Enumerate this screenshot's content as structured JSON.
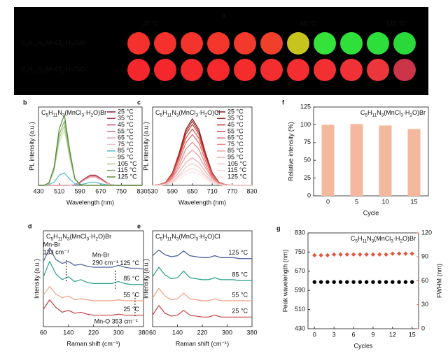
{
  "photo": {
    "panel": "a",
    "temperature_labels": [
      "25 °C",
      "85 °C",
      "125 °C"
    ],
    "rows": [
      {
        "label": "C5H11N3(MnCl3·H2O)Br",
        "colors": [
          "#f4312c",
          "#f4312c",
          "#f4332c",
          "#f4362c",
          "#f23a2c",
          "#f0402c",
          "#c8c41e",
          "#34e23a",
          "#30e03a",
          "#2ede3a",
          "#2ad83a"
        ]
      },
      {
        "label": "C5H11N3(MnCl3·H2O)Cl",
        "colors": [
          "#f4272c",
          "#f4282c",
          "#f4292c",
          "#f42a2c",
          "#f42c2c",
          "#f42d2e",
          "#f42e30",
          "#f23032",
          "#f03236",
          "#ec363c",
          "#cc3448"
        ]
      }
    ]
  },
  "chart_data": [
    {
      "panel": "b",
      "type": "line",
      "annotation": "C5H11N3(MnCl3·H2O)Br",
      "xlabel": "Wavelength (nm)",
      "ylabel": "PL intensity (a.u.)",
      "xlim": [
        430,
        830
      ],
      "xticks": [
        430,
        510,
        590,
        670,
        750,
        830
      ],
      "ylim": [
        0,
        1
      ],
      "legend": "right",
      "x": [
        430,
        450,
        470,
        490,
        510,
        530,
        550,
        570,
        590,
        610,
        630,
        650,
        670,
        690,
        710,
        730,
        750,
        770,
        790,
        810,
        830
      ],
      "series": [
        {
          "name": "25 °C",
          "color": "#8b1a2a",
          "values": [
            0,
            0,
            0,
            0,
            0,
            0,
            0,
            0.01,
            0.04,
            0.09,
            0.13,
            0.13,
            0.09,
            0.04,
            0.01,
            0,
            0,
            0,
            0,
            0,
            0
          ]
        },
        {
          "name": "35 °C",
          "color": "#b03040",
          "values": [
            0,
            0,
            0,
            0,
            0,
            0,
            0,
            0.01,
            0.04,
            0.09,
            0.13,
            0.13,
            0.09,
            0.04,
            0.01,
            0,
            0,
            0,
            0,
            0,
            0
          ]
        },
        {
          "name": "45 °C",
          "color": "#c85060",
          "values": [
            0,
            0,
            0,
            0,
            0,
            0,
            0,
            0.01,
            0.03,
            0.08,
            0.12,
            0.12,
            0.08,
            0.03,
            0.01,
            0,
            0,
            0,
            0,
            0,
            0
          ]
        },
        {
          "name": "55 °C",
          "color": "#d87080",
          "values": [
            0,
            0,
            0,
            0,
            0,
            0,
            0,
            0.01,
            0.03,
            0.08,
            0.12,
            0.12,
            0.08,
            0.03,
            0.01,
            0,
            0,
            0,
            0,
            0,
            0
          ]
        },
        {
          "name": "65 °C",
          "color": "#e49aa5",
          "values": [
            0,
            0,
            0,
            0,
            0,
            0,
            0,
            0.01,
            0.03,
            0.07,
            0.11,
            0.11,
            0.07,
            0.03,
            0.01,
            0,
            0,
            0,
            0,
            0,
            0
          ]
        },
        {
          "name": "75 °C",
          "color": "#f0c0c8",
          "values": [
            0,
            0,
            0,
            0,
            0,
            0,
            0,
            0.01,
            0.03,
            0.07,
            0.1,
            0.1,
            0.07,
            0.03,
            0.01,
            0,
            0,
            0,
            0,
            0,
            0
          ]
        },
        {
          "name": "85 °C",
          "color": "#4fbcd6",
          "values": [
            0,
            0,
            0.01,
            0.04,
            0.13,
            0.16,
            0.08,
            0.02,
            0.01,
            0.02,
            0.04,
            0.04,
            0.02,
            0.01,
            0,
            0,
            0,
            0,
            0,
            0,
            0
          ]
        },
        {
          "name": "95 °C",
          "color": "#cfe0b8",
          "values": [
            0,
            0,
            0.02,
            0.18,
            0.55,
            0.7,
            0.35,
            0.07,
            0.01,
            0,
            0,
            0,
            0,
            0,
            0,
            0,
            0,
            0,
            0,
            0,
            0
          ]
        },
        {
          "name": "105 °C",
          "color": "#aecb94",
          "values": [
            0,
            0,
            0.02,
            0.2,
            0.6,
            0.76,
            0.38,
            0.08,
            0.01,
            0,
            0,
            0,
            0,
            0,
            0,
            0,
            0,
            0,
            0,
            0,
            0
          ]
        },
        {
          "name": "115 °C",
          "color": "#86ad6a",
          "values": [
            0,
            0,
            0.03,
            0.21,
            0.65,
            0.82,
            0.42,
            0.09,
            0.01,
            0,
            0,
            0,
            0,
            0,
            0,
            0,
            0,
            0,
            0,
            0,
            0
          ]
        },
        {
          "name": "125 °C",
          "color": "#5a8a3a",
          "values": [
            0,
            0,
            0.03,
            0.23,
            0.72,
            0.9,
            0.46,
            0.09,
            0.01,
            0,
            0,
            0,
            0,
            0,
            0,
            0,
            0,
            0,
            0,
            0,
            0
          ]
        }
      ]
    },
    {
      "panel": "c",
      "type": "line",
      "annotation": "C5H11N3(MnCl3·H2O)Cl",
      "xlabel": "Wavelength (nm)",
      "ylabel": "PL intensity (a.u.)",
      "xlim": [
        530,
        830
      ],
      "xticks": [
        530,
        590,
        650,
        710,
        770,
        830
      ],
      "ylim": [
        0,
        1
      ],
      "legend": "right",
      "x": [
        530,
        550,
        570,
        590,
        610,
        630,
        650,
        670,
        690,
        710,
        730,
        750,
        770,
        790,
        810,
        830
      ],
      "series": [
        {
          "name": "25 °C",
          "color": "#8b1a1a",
          "values": [
            0,
            0.01,
            0.04,
            0.16,
            0.41,
            0.71,
            0.85,
            0.71,
            0.41,
            0.16,
            0.04,
            0.01,
            0,
            0,
            0,
            0
          ]
        },
        {
          "name": "35 °C",
          "color": "#a52a2a",
          "values": [
            0,
            0.01,
            0.04,
            0.16,
            0.39,
            0.68,
            0.82,
            0.68,
            0.39,
            0.16,
            0.04,
            0.01,
            0,
            0,
            0,
            0
          ]
        },
        {
          "name": "45 °C",
          "color": "#c0392b",
          "values": [
            0,
            0.01,
            0.04,
            0.15,
            0.37,
            0.65,
            0.78,
            0.65,
            0.37,
            0.15,
            0.04,
            0.01,
            0,
            0,
            0,
            0
          ]
        },
        {
          "name": "55 °C",
          "color": "#d9534f",
          "values": [
            0,
            0.01,
            0.04,
            0.14,
            0.35,
            0.6,
            0.72,
            0.6,
            0.35,
            0.14,
            0.04,
            0.01,
            0,
            0,
            0,
            0
          ]
        },
        {
          "name": "65 °C",
          "color": "#e06666",
          "values": [
            0,
            0.01,
            0.03,
            0.12,
            0.31,
            0.54,
            0.65,
            0.54,
            0.31,
            0.12,
            0.03,
            0.01,
            0,
            0,
            0,
            0
          ]
        },
        {
          "name": "75 °C",
          "color": "#e88080",
          "values": [
            0,
            0.01,
            0.03,
            0.1,
            0.26,
            0.46,
            0.55,
            0.46,
            0.26,
            0.1,
            0.03,
            0.01,
            0,
            0,
            0,
            0
          ]
        },
        {
          "name": "85 °C",
          "color": "#ec9a9a",
          "values": [
            0,
            0,
            0.02,
            0.09,
            0.22,
            0.37,
            0.45,
            0.37,
            0.22,
            0.09,
            0.02,
            0,
            0,
            0,
            0,
            0
          ]
        },
        {
          "name": "95 °C",
          "color": "#f0b0b0",
          "values": [
            0,
            0,
            0.02,
            0.07,
            0.17,
            0.29,
            0.35,
            0.29,
            0.17,
            0.07,
            0.02,
            0,
            0,
            0,
            0,
            0
          ]
        },
        {
          "name": "105 °C",
          "color": "#f4c4c4",
          "values": [
            0,
            0,
            0.01,
            0.05,
            0.13,
            0.23,
            0.28,
            0.23,
            0.13,
            0.05,
            0.01,
            0,
            0,
            0,
            0,
            0
          ]
        },
        {
          "name": "115 °C",
          "color": "#f7d4d4",
          "values": [
            0,
            0,
            0.01,
            0.04,
            0.11,
            0.18,
            0.22,
            0.18,
            0.11,
            0.04,
            0.01,
            0,
            0,
            0,
            0,
            0
          ]
        },
        {
          "name": "125 °C",
          "color": "#fae2e2",
          "values": [
            0,
            0,
            0.01,
            0.03,
            0.08,
            0.14,
            0.17,
            0.14,
            0.08,
            0.03,
            0.01,
            0,
            0,
            0,
            0,
            0
          ]
        }
      ]
    },
    {
      "panel": "f",
      "type": "bar",
      "annotation": "C5H11N3(MnCl3·H2O)Br",
      "xlabel": "Cycle",
      "ylabel": "Relative intensity (%)",
      "categories": [
        "0",
        "5",
        "10",
        "15"
      ],
      "values": [
        100,
        101,
        99,
        94
      ],
      "color": "#f4b89e",
      "ylim": [
        0,
        125
      ],
      "yticks": [
        0,
        25,
        50,
        75,
        100,
        125
      ]
    },
    {
      "panel": "d",
      "type": "line",
      "annotation": "C5H11N3(MnCl3·H2O)Br",
      "xlabel": "Raman shift (cm⁻¹)",
      "ylabel": "Intensity (a.u.)",
      "xlim": [
        60,
        380
      ],
      "xticks": [
        60,
        140,
        220,
        300,
        380
      ],
      "ylim": [
        0,
        1
      ],
      "legend": "inline",
      "x": [
        60,
        80,
        100,
        120,
        140,
        160,
        180,
        200,
        220,
        240,
        260,
        280,
        300,
        320,
        340,
        360,
        380
      ],
      "series": [
        {
          "name": "125 °C",
          "color": "#4a5a9a",
          "values": [
            0.68,
            0.82,
            0.7,
            0.66,
            0.68,
            0.64,
            0.65,
            0.63,
            0.62,
            0.62,
            0.62,
            0.62,
            0.64,
            0.62,
            0.61,
            0.61,
            0.6
          ]
        },
        {
          "name": "85 °C",
          "color": "#2aa08a",
          "values": [
            0.52,
            0.68,
            0.55,
            0.49,
            0.52,
            0.47,
            0.49,
            0.46,
            0.45,
            0.45,
            0.45,
            0.45,
            0.47,
            0.45,
            0.44,
            0.44,
            0.44
          ]
        },
        {
          "name": "55 °C",
          "color": "#f0a080",
          "values": [
            0.33,
            0.42,
            0.34,
            0.3,
            0.32,
            0.28,
            0.29,
            0.28,
            0.27,
            0.27,
            0.27,
            0.27,
            0.28,
            0.27,
            0.27,
            0.27,
            0.27
          ]
        },
        {
          "name": "25 °C",
          "color": "#c04040",
          "values": [
            0.18,
            0.28,
            0.2,
            0.15,
            0.17,
            0.14,
            0.15,
            0.13,
            0.12,
            0.12,
            0.12,
            0.12,
            0.13,
            0.12,
            0.12,
            0.12,
            0.12
          ]
        }
      ],
      "markers": [
        {
          "x": 133,
          "label": [
            "Mn-Br",
            "133 cm⁻¹"
          ]
        },
        {
          "x": 290,
          "label": [
            "Mn-Br",
            "290 cm⁻¹"
          ]
        },
        {
          "x": 353,
          "label": [
            "Mn-O 353 cm⁻¹"
          ]
        }
      ]
    },
    {
      "panel": "e",
      "type": "line",
      "annotation": "C5H11N3(MnCl3·H2O)Cl",
      "xlabel": "Raman shift (cm⁻¹)",
      "ylabel": "Intensity (a.u.)",
      "xlim": [
        60,
        380
      ],
      "xticks": [
        60,
        140,
        220,
        300,
        380
      ],
      "ylim": [
        0,
        1
      ],
      "legend": "inline",
      "x": [
        60,
        80,
        100,
        120,
        140,
        160,
        180,
        200,
        220,
        240,
        260,
        280,
        300,
        320,
        340,
        360,
        380
      ],
      "series": [
        {
          "name": "125 °C",
          "color": "#4a5a9a",
          "values": [
            0.74,
            0.8,
            0.75,
            0.73,
            0.74,
            0.79,
            0.74,
            0.73,
            0.72,
            0.72,
            0.74,
            0.72,
            0.72,
            0.72,
            0.71,
            0.71,
            0.71
          ]
        },
        {
          "name": "85 °C",
          "color": "#2aa08a",
          "values": [
            0.52,
            0.62,
            0.54,
            0.5,
            0.51,
            0.58,
            0.51,
            0.5,
            0.49,
            0.49,
            0.51,
            0.49,
            0.49,
            0.49,
            0.48,
            0.48,
            0.48
          ]
        },
        {
          "name": "55 °C",
          "color": "#f0a080",
          "values": [
            0.3,
            0.4,
            0.32,
            0.28,
            0.29,
            0.35,
            0.29,
            0.28,
            0.27,
            0.27,
            0.29,
            0.27,
            0.27,
            0.27,
            0.27,
            0.27,
            0.27
          ]
        },
        {
          "name": "25 °C",
          "color": "#c04040",
          "values": [
            0.12,
            0.22,
            0.14,
            0.11,
            0.12,
            0.17,
            0.12,
            0.11,
            0.1,
            0.1,
            0.12,
            0.1,
            0.1,
            0.1,
            0.1,
            0.1,
            0.1
          ]
        }
      ]
    },
    {
      "panel": "g",
      "type": "scatter",
      "annotation": "C5H11N3(MnCl3·H2O)Br",
      "xlabel": "Cycles",
      "ylabel": "Peak wavelength (nm)",
      "y2label": "FWHM (nm)",
      "y2color": "#e05a40",
      "xlim": [
        -1,
        16
      ],
      "xticks": [
        0,
        3,
        6,
        9,
        12,
        15
      ],
      "ylim": [
        430,
        830
      ],
      "yticks": [
        430,
        510,
        590,
        670,
        750,
        830
      ],
      "y2lim": [
        0,
        120
      ],
      "y2ticks": [
        0,
        30,
        60,
        90,
        120
      ],
      "x": [
        0,
        1,
        2,
        3,
        4,
        5,
        6,
        7,
        8,
        9,
        10,
        11,
        12,
        13,
        14,
        15
      ],
      "series": [
        {
          "color": "#000000",
          "marker": "circle",
          "values": [
            625,
            625,
            625,
            625,
            625,
            625,
            625,
            625,
            625,
            625,
            625,
            625,
            625,
            625,
            625,
            625
          ]
        },
        {
          "color": "#e05a40",
          "marker": "diamond",
          "axis": "y2",
          "values": [
            92,
            92,
            92,
            93,
            93,
            93,
            93,
            93,
            93,
            93,
            93,
            93,
            94,
            94,
            94,
            94
          ]
        }
      ]
    }
  ]
}
